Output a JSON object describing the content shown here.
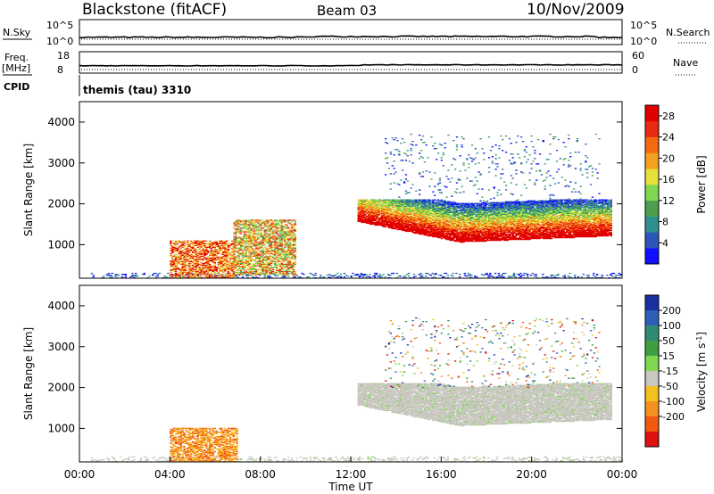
{
  "header": {
    "title": "Blackstone (fitACF)",
    "beam": "Beam 03",
    "date": "10/Nov/2009"
  },
  "strips": {
    "nsky_label": "N.Sky",
    "nsearch_label": "N.Search",
    "freq_label_line1": "Freq.",
    "freq_label_line2": "[MHz]",
    "nave_label": "Nave",
    "cpid_label": "CPID",
    "cpid_value": "themis (tau) 3310",
    "noise_ticks_left": [
      "10^5",
      "10^0"
    ],
    "noise_ticks_right": [
      "10^5",
      "10^0"
    ],
    "freq_ticks_left": [
      "18",
      "8"
    ],
    "nave_ticks_right": [
      "60",
      "0"
    ]
  },
  "chart_data": [
    {
      "type": "heatmap",
      "panel": "power",
      "ylabel": "Slant Range [km]",
      "ylim": [
        180,
        4500
      ],
      "yticks": [
        1000,
        2000,
        3000,
        4000
      ],
      "xlim": [
        0,
        24
      ],
      "xtick_labels": [
        "00:00",
        "04:00",
        "08:00",
        "12:00",
        "16:00",
        "20:00",
        "00:00"
      ],
      "colorbar": {
        "label": "Power [dB]",
        "tick_labels": [
          "4",
          "8",
          "12",
          "16",
          "20",
          "24",
          "28"
        ],
        "colors": [
          "#1010ff",
          "#2e55b8",
          "#2f8f8f",
          "#4f9e4f",
          "#7fd84f",
          "#e6e03a",
          "#f4a020",
          "#f36a10",
          "#e82a10",
          "#e00000"
        ]
      },
      "echo_regions": [
        {
          "t_start": 0.5,
          "t_end": 24,
          "range_min": 180,
          "range_max": 300,
          "level": "low"
        },
        {
          "t_start": 4.0,
          "t_end": 6.8,
          "range_min": 180,
          "range_max": 1100,
          "level": "high"
        },
        {
          "t_start": 6.8,
          "t_end": 9.5,
          "range_min": 250,
          "range_max": 1600,
          "level": "medium"
        },
        {
          "t_start": 12.3,
          "t_end": 23.5,
          "range_min": 900,
          "range_max": 2100,
          "level": "high"
        },
        {
          "t_start": 13.5,
          "t_end": 23.0,
          "range_min": 2000,
          "range_max": 3700,
          "level": "sparse"
        }
      ]
    },
    {
      "type": "heatmap",
      "panel": "velocity",
      "ylabel": "Slant Range [km]",
      "xlabel": "Time UT",
      "ylim": [
        180,
        4500
      ],
      "yticks": [
        1000,
        2000,
        3000,
        4000
      ],
      "xlim": [
        0,
        24
      ],
      "xtick_labels": [
        "00:00",
        "04:00",
        "08:00",
        "12:00",
        "16:00",
        "20:00",
        "00:00"
      ],
      "colorbar": {
        "label": "Velocity [m s",
        "label_exponent": "-1",
        "label_suffix": "]",
        "tick_labels": [
          "200",
          "100",
          "50",
          "15",
          "-15",
          "-50",
          "-100",
          "-200"
        ],
        "colors": [
          "#1a2fa0",
          "#2e5fb8",
          "#2f8c74",
          "#3f9f3f",
          "#7fd84f",
          "#c8c8c0",
          "#f4c020",
          "#f49020",
          "#f25a10",
          "#e01010"
        ]
      },
      "echo_regions": [
        {
          "t_start": 0.5,
          "t_end": 24,
          "range_min": 180,
          "range_max": 300,
          "level": "ground"
        },
        {
          "t_start": 4.0,
          "t_end": 7.0,
          "range_min": 180,
          "range_max": 1000,
          "level": "negative"
        },
        {
          "t_start": 12.3,
          "t_end": 23.5,
          "range_min": 900,
          "range_max": 2100,
          "level": "ground"
        },
        {
          "t_start": 13.5,
          "t_end": 23.0,
          "range_min": 2000,
          "range_max": 3700,
          "level": "sparse"
        }
      ]
    }
  ]
}
